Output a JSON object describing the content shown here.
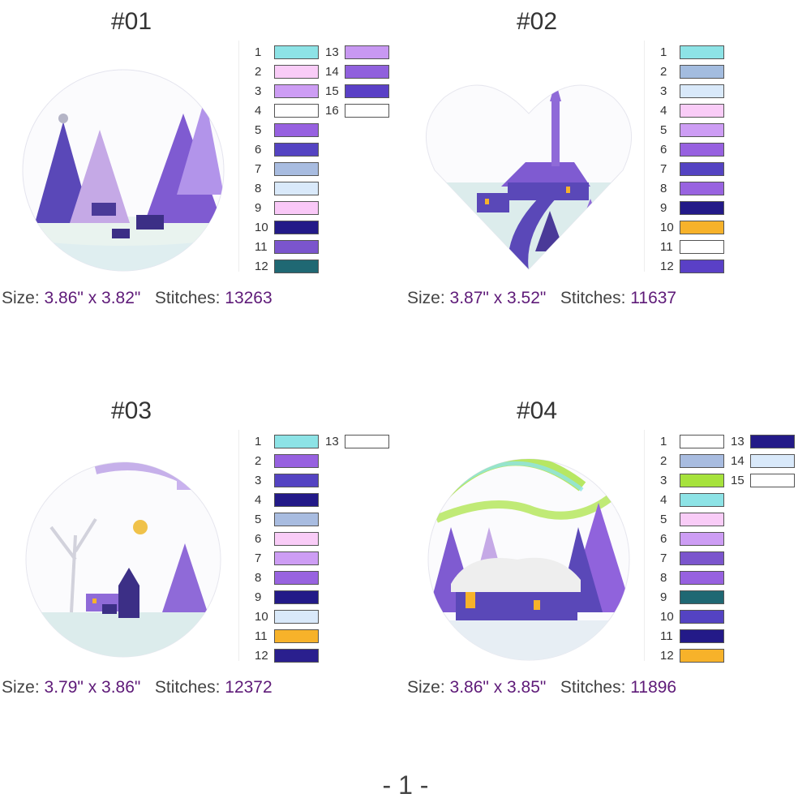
{
  "designs": [
    {
      "title": "#01",
      "size_label": "Size:",
      "size_value": "3.86\" x 3.82\"",
      "stitches_label": "Stitches:",
      "stitches_value": "13263",
      "image_icon": "winter-forest-deer-embroidery",
      "colors": [
        {
          "n": "1",
          "c": "#8de3e6"
        },
        {
          "n": "2",
          "c": "#f9ccf7"
        },
        {
          "n": "3",
          "c": "#cd9df4"
        },
        {
          "n": "4",
          "c": "#ffffff"
        },
        {
          "n": "5",
          "c": "#9761e0"
        },
        {
          "n": "6",
          "c": "#5443c2"
        },
        {
          "n": "7",
          "c": "#a8bce0"
        },
        {
          "n": "8",
          "c": "#d9e9fa"
        },
        {
          "n": "9",
          "c": "#f9c8f7"
        },
        {
          "n": "10",
          "c": "#231a88"
        },
        {
          "n": "11",
          "c": "#7b55cd"
        },
        {
          "n": "12",
          "c": "#1f6873"
        },
        {
          "n": "13",
          "c": "#c898f2"
        },
        {
          "n": "14",
          "c": "#9060dd"
        },
        {
          "n": "15",
          "c": "#5a40c6"
        },
        {
          "n": "16",
          "c": "#ffffff"
        }
      ]
    },
    {
      "title": "#02",
      "size_label": "Size:",
      "size_value": "3.87\" x 3.52\"",
      "stitches_label": "Stitches:",
      "stitches_value": "11637",
      "image_icon": "winter-church-heart-embroidery",
      "colors": [
        {
          "n": "1",
          "c": "#8de3e6"
        },
        {
          "n": "2",
          "c": "#a3bcdf"
        },
        {
          "n": "3",
          "c": "#d9e9fa"
        },
        {
          "n": "4",
          "c": "#f9ccf7"
        },
        {
          "n": "5",
          "c": "#cd9df4"
        },
        {
          "n": "6",
          "c": "#9761e0"
        },
        {
          "n": "7",
          "c": "#5443c2"
        },
        {
          "n": "8",
          "c": "#9863e0"
        },
        {
          "n": "9",
          "c": "#231a88"
        },
        {
          "n": "10",
          "c": "#f7b22a"
        },
        {
          "n": "11",
          "c": "#ffffff"
        },
        {
          "n": "12",
          "c": "#5a40c6"
        }
      ]
    },
    {
      "title": "#03",
      "size_label": "Size:",
      "size_value": "3.79\" x 3.86\"",
      "stitches_label": "Stitches:",
      "stitches_value": "12372",
      "image_icon": "winter-sleigh-church-embroidery",
      "colors": [
        {
          "n": "1",
          "c": "#8de3e6"
        },
        {
          "n": "2",
          "c": "#9761e0"
        },
        {
          "n": "3",
          "c": "#5443c2"
        },
        {
          "n": "4",
          "c": "#231a88"
        },
        {
          "n": "5",
          "c": "#a8bce0"
        },
        {
          "n": "6",
          "c": "#f9ccf7"
        },
        {
          "n": "7",
          "c": "#cd9df4"
        },
        {
          "n": "8",
          "c": "#9863e0"
        },
        {
          "n": "9",
          "c": "#231a88"
        },
        {
          "n": "10",
          "c": "#d9e9fa"
        },
        {
          "n": "11",
          "c": "#f7b22a"
        },
        {
          "n": "12",
          "c": "#2a1f8e"
        },
        {
          "n": "13",
          "c": "#ffffff"
        }
      ]
    },
    {
      "title": "#04",
      "size_label": "Size:",
      "size_value": "3.86\" x 3.85\"",
      "stitches_label": "Stitches:",
      "stitches_value": "11896",
      "image_icon": "winter-cottage-aurora-embroidery",
      "colors": [
        {
          "n": "1",
          "c": "#ffffff"
        },
        {
          "n": "2",
          "c": "#a8bce0"
        },
        {
          "n": "3",
          "c": "#a6e23c"
        },
        {
          "n": "4",
          "c": "#8de3e6"
        },
        {
          "n": "5",
          "c": "#f9ccf7"
        },
        {
          "n": "6",
          "c": "#cd9df4"
        },
        {
          "n": "7",
          "c": "#7b55cd"
        },
        {
          "n": "8",
          "c": "#9761e0"
        },
        {
          "n": "9",
          "c": "#1f6873"
        },
        {
          "n": "10",
          "c": "#5443c2"
        },
        {
          "n": "11",
          "c": "#231a88"
        },
        {
          "n": "12",
          "c": "#f7b22a"
        },
        {
          "n": "13",
          "c": "#231a88"
        },
        {
          "n": "14",
          "c": "#d9e9fa"
        },
        {
          "n": "15",
          "c": "#ffffff"
        }
      ]
    }
  ],
  "page_number": "- 1 -"
}
